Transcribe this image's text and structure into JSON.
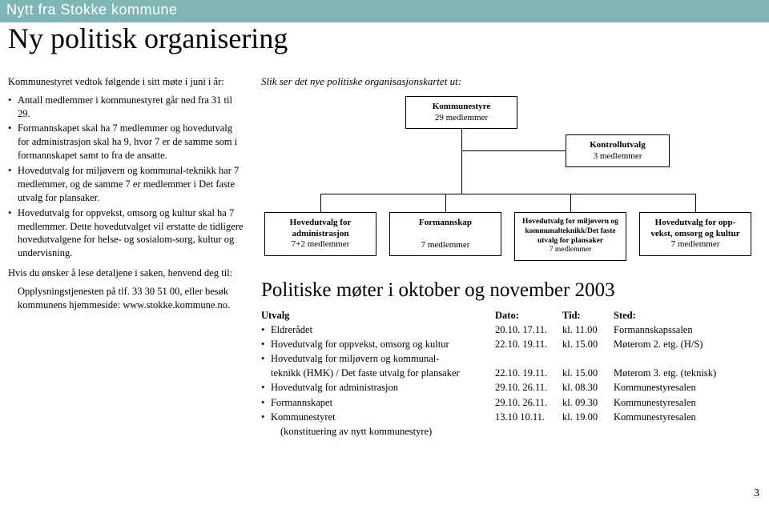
{
  "banner": "Nytt fra Stokke kommune",
  "title": "Ny politisk organisering",
  "left": {
    "intro": "Kommunestyret vedtok følgende i sitt møte i juni i år:",
    "bullets": [
      "Antall medlemmer i kommunestyret går ned fra 31 til 29.",
      "Formannskapet skal ha 7 medlemmer og hovedutvalg for administrasjon skal ha 9, hvor 7 er de samme som i formannskapet samt to fra de ansatte.",
      "Hovedutvalg for miljøvern og kommunal-teknikk har 7 medlemmer, og de samme 7 er medlemmer i Det faste utvalg for plansaker.",
      "Hovedutvalg for oppvekst, omsorg og kultur skal ha 7 medlemmer. Dette hovedutvalget vil erstatte de tidligere hovedutvalgene for helse- og sosialom-sorg, kultur og undervisning."
    ],
    "closing1": "Hvis du ønsker å lese detaljene i saken, henvend deg til:",
    "closing2": "Opplysningstjenesten på tlf. 33 30 51 00, eller besøk kommunens hjemmeside: www.stokke.kommune.no."
  },
  "chart": {
    "caption": "Slik ser det nye politiske organisasjonskartet ut:",
    "top": {
      "l1": "Kommunestyre",
      "l2": "29 medlemmer"
    },
    "kontroll": {
      "l1": "Kontrollutvalg",
      "l2": "3 medlemmer"
    },
    "leaf1": {
      "l1": "Hovedutvalg for",
      "l2": "administrasjon",
      "l3": "7+2 medlemmer"
    },
    "leaf2": {
      "l1": "Formannskap",
      "l2": "",
      "l3": "7 medlemmer"
    },
    "leaf3": {
      "l1": "Hovedutvalg for miljøvern og",
      "l2": "kommunalteknikk/Det faste",
      "l3": "utvalg for plansaker",
      "l4": "7 medlemmer"
    },
    "leaf4": {
      "l1": "Hovedutvalg for opp-",
      "l2": "vekst, omsorg og kultur",
      "l3": "7 medlemmer"
    },
    "styling": {
      "border_color": "#000000",
      "node_bg": "#ffffff",
      "line_color": "#000000",
      "font_size": 11
    }
  },
  "meetings": {
    "title": "Politiske møter i oktober og november 2003",
    "head": {
      "utvalg": "Utvalg",
      "dato": "Dato:",
      "tid": "Tid:",
      "sted": "Sted:"
    },
    "rows": [
      {
        "u": "Eldrerådet",
        "d": "20.10.  17.11.",
        "t": "kl. 11.00",
        "s": "Formannskapssalen"
      },
      {
        "u": "Hovedutvalg for oppvekst, omsorg og kultur",
        "d": "22.10.  19.11.",
        "t": "kl. 15.00",
        "s": "Møterom 2. etg. (H/S)"
      },
      {
        "u": "Hovedutvalg for miljøvern og kommunal-",
        "d": "",
        "t": "",
        "s": ""
      },
      {
        "u": "teknikk (HMK) / Det faste utvalg for plansaker",
        "d": "22.10.  19.11.",
        "t": "kl. 15.00",
        "s": "Møterom 3. etg. (teknisk)",
        "noBullet": true
      },
      {
        "u": "Hovedutvalg for administrasjon",
        "d": "29.10.  26.11.",
        "t": "kl. 08.30",
        "s": "Kommunestyresalen"
      },
      {
        "u": "Formannskapet",
        "d": "29.10.  26.11.",
        "t": "kl. 09.30",
        "s": "Kommunestyresalen"
      },
      {
        "u": "Kommunestyret",
        "d": "13.10   10.11.",
        "t": "kl. 19.00",
        "s": "Kommunestyresalen"
      }
    ],
    "subnote": "(konstituering av nytt kommunestyre)"
  },
  "page_num": "3"
}
